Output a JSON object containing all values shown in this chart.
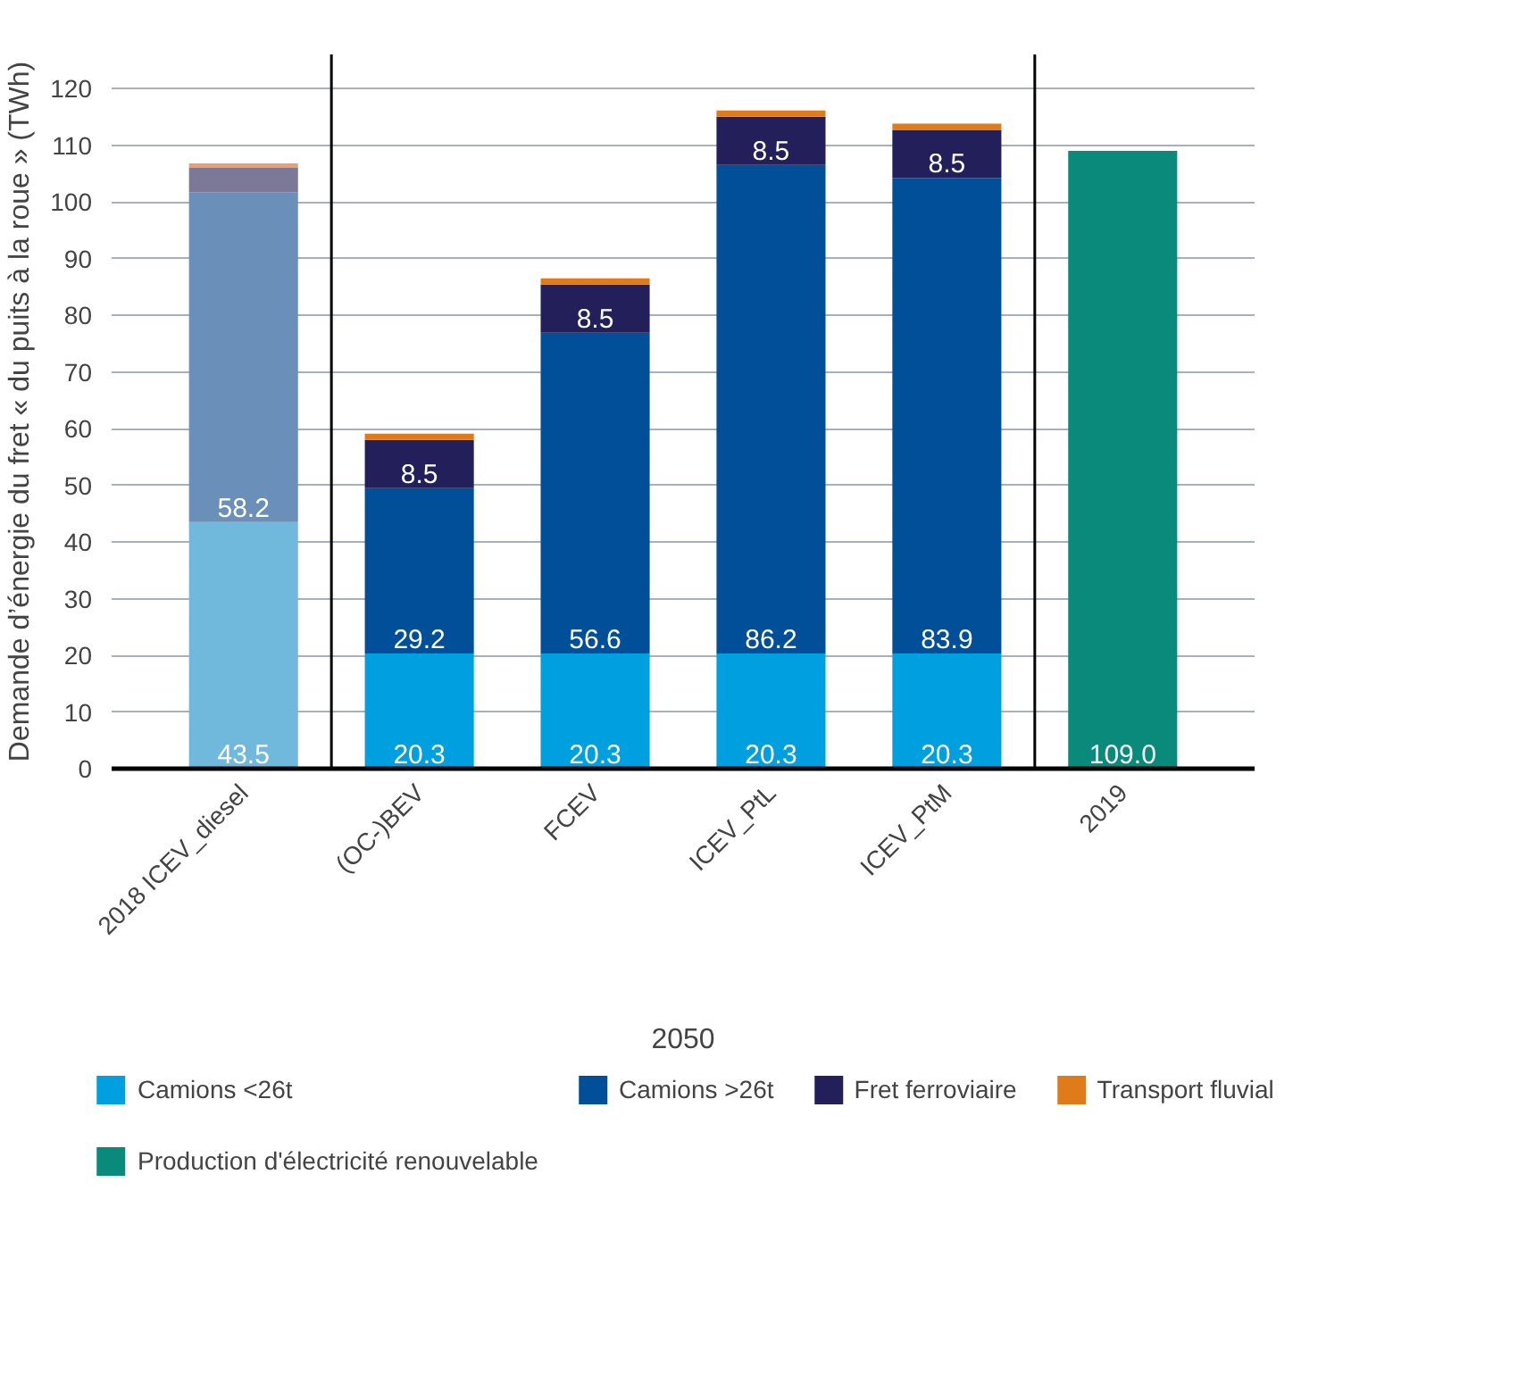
{
  "chart_data": {
    "type": "bar",
    "stacked": true,
    "categories": [
      "2018 ICEV_diesel",
      "(OC-)BEV",
      "FCEV",
      "ICEV_PtL",
      "ICEV_PtM",
      "2019"
    ],
    "xlabel": "2050",
    "ylabel": "Demande d’énergie du fret « du puits à la roue » (TWh)",
    "ylim": [
      0,
      126
    ],
    "yticks": [
      0,
      10,
      20,
      30,
      40,
      50,
      60,
      70,
      80,
      90,
      100,
      110,
      120
    ],
    "grid": "y",
    "legend": "bottom",
    "series": [
      {
        "name": "Camions <26t",
        "color": "#00a0e0",
        "colors": [
          "#70b8dc",
          "#00a0e0",
          "#00a0e0",
          "#00a0e0",
          "#00a0e0",
          null
        ],
        "values": [
          43.5,
          20.3,
          20.3,
          20.3,
          20.3,
          null
        ],
        "value_labels": [
          "43.5",
          "20.3",
          "20.3",
          "20.3",
          "20.3",
          null
        ]
      },
      {
        "name": "Camions >26t",
        "color": "#004f98",
        "colors": [
          "#6a8fb8",
          "#004f98",
          "#004f98",
          "#004f98",
          "#004f98",
          null
        ],
        "values": [
          58.2,
          29.2,
          56.6,
          86.2,
          83.9,
          null
        ],
        "value_labels": [
          "58.2",
          "29.2",
          "56.6",
          "86.2",
          "83.9",
          null
        ]
      },
      {
        "name": "Fret ferroviaire",
        "color": "#231f5a",
        "colors": [
          "#7b7898",
          "#231f5a",
          "#231f5a",
          "#231f5a",
          "#231f5a",
          null
        ],
        "values": [
          4.3,
          8.5,
          8.5,
          8.5,
          8.5,
          null
        ],
        "value_labels": [
          null,
          "8.5",
          "8.5",
          "8.5",
          "8.5",
          null
        ]
      },
      {
        "name": "Transport fluvial",
        "color": "#e07b1a",
        "colors": [
          "#e8a070",
          "#e07b1a",
          "#e07b1a",
          "#e07b1a",
          "#e07b1a",
          null
        ],
        "values": [
          0.8,
          1.1,
          1.1,
          1.1,
          1.1,
          null
        ],
        "value_labels": [
          null,
          null,
          null,
          null,
          null,
          null
        ]
      },
      {
        "name": "Production d'électricité renouvelable",
        "color": "#0a8a7a",
        "colors": [
          null,
          null,
          null,
          null,
          null,
          "#0a8a7a"
        ],
        "values": [
          null,
          null,
          null,
          null,
          null,
          109.0
        ],
        "value_labels": [
          null,
          null,
          null,
          null,
          null,
          "109.0"
        ]
      }
    ]
  }
}
